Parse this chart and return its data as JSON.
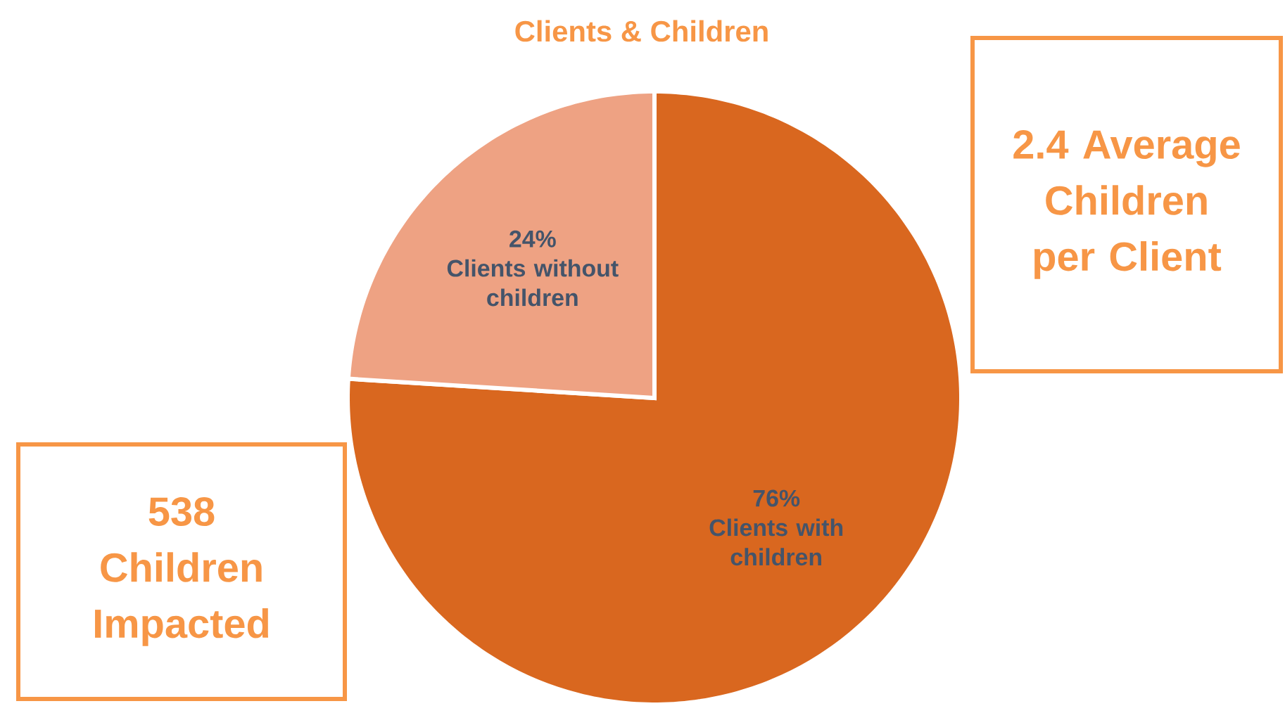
{
  "chart_data": {
    "type": "pie",
    "title": "Clients & Children",
    "categories": [
      "Clients with children",
      "Clients without children"
    ],
    "values": [
      76,
      24
    ],
    "colors": [
      "#d9671f",
      "#eea283"
    ],
    "value_labels": [
      "76%",
      "24%"
    ],
    "annotations": [
      "2.4 Average Children per Client",
      "538 Children Impacted"
    ]
  }
}
